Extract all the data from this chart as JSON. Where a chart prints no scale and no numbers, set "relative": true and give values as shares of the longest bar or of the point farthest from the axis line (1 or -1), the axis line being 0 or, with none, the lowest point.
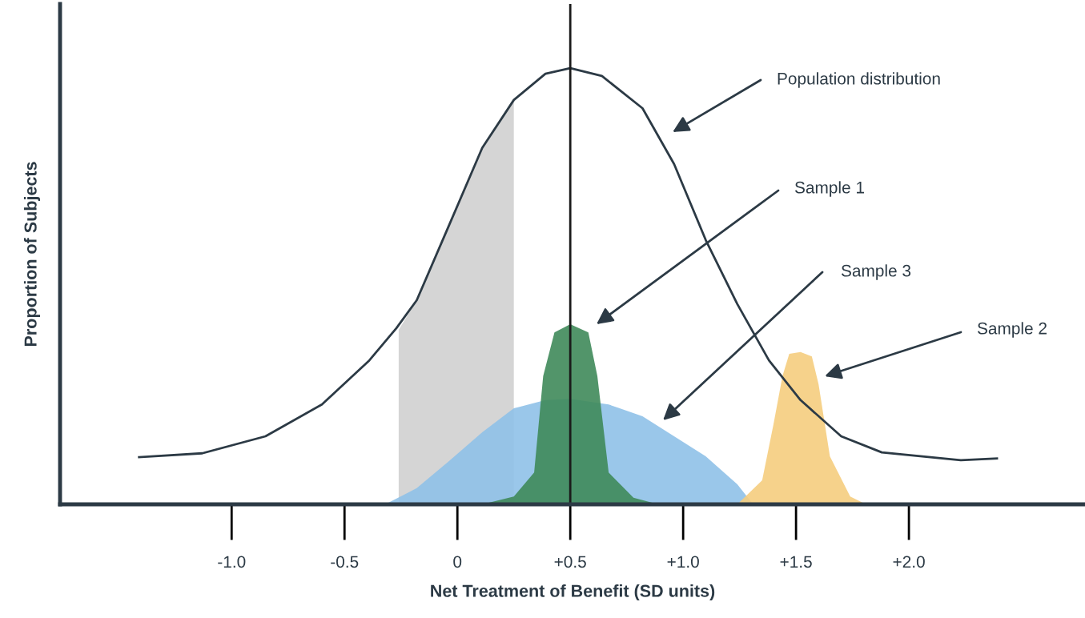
{
  "chart_data": {
    "type": "area",
    "relative": true,
    "xlabel": "Net Treatment of Benefit (SD units)",
    "ylabel": "Proportion of Subjects",
    "xlim": [
      -1.76,
      2.78
    ],
    "xticks": [
      {
        "value": -1.0,
        "label": "-1.0"
      },
      {
        "value": -0.5,
        "label": "-0.5"
      },
      {
        "value": 0,
        "label": "0"
      },
      {
        "value": 0.5,
        "label": "+0.5"
      },
      {
        "value": 1.0,
        "label": "+1.0"
      },
      {
        "value": 1.5,
        "label": "+1.5"
      },
      {
        "value": 2.0,
        "label": "+2.0"
      }
    ],
    "grid": false,
    "legend": false,
    "series": [
      {
        "color": "#d0d0d0",
        "x": [
          -0.26,
          -0.18,
          -0.035,
          0.11,
          0.25
        ],
        "values": [
          0.4,
          0.468,
          0.642,
          0.817,
          0.927
        ]
      },
      {
        "color": "#8fc1e8",
        "x": [
          -0.32,
          -0.18,
          -0.035,
          0.11,
          0.25,
          0.39,
          0.5,
          0.67,
          0.82,
          0.96,
          1.1,
          1.24,
          1.31
        ],
        "values": [
          0,
          0.037,
          0.1,
          0.165,
          0.22,
          0.239,
          0.242,
          0.229,
          0.202,
          0.156,
          0.11,
          0.046,
          0
        ]
      },
      {
        "color": "#3f8a5a",
        "x": [
          0.11,
          0.25,
          0.34,
          0.38,
          0.43,
          0.5,
          0.58,
          0.62,
          0.67,
          0.78,
          0.89
        ],
        "values": [
          0,
          0.018,
          0.073,
          0.294,
          0.394,
          0.413,
          0.394,
          0.294,
          0.073,
          0.015,
          0
        ]
      },
      {
        "color": "#f5cd7e",
        "x": [
          1.24,
          1.35,
          1.4,
          1.44,
          1.47,
          1.52,
          1.57,
          1.6,
          1.65,
          1.74,
          1.81
        ],
        "values": [
          0,
          0.055,
          0.183,
          0.294,
          0.345,
          0.349,
          0.339,
          0.275,
          0.11,
          0.018,
          0
        ]
      },
      {
        "type": "line",
        "color": "#2c3a45",
        "x": [
          -1.41,
          -1.13,
          -0.85,
          -0.6,
          -0.39,
          -0.27,
          -0.18,
          -0.035,
          0.11,
          0.25,
          0.39,
          0.5,
          0.64,
          0.82,
          0.96,
          1.1,
          1.24,
          1.38,
          1.52,
          1.7,
          1.88,
          2.23,
          2.39
        ],
        "values": [
          0.108,
          0.117,
          0.156,
          0.229,
          0.33,
          0.404,
          0.468,
          0.642,
          0.817,
          0.927,
          0.987,
          1.0,
          0.982,
          0.908,
          0.78,
          0.606,
          0.459,
          0.33,
          0.239,
          0.156,
          0.119,
          0.101,
          0.105
        ]
      }
    ],
    "ref_lines": [
      {
        "axis": "x",
        "value": 0.5,
        "color": "#1a1a1a"
      }
    ],
    "annotations": [
      "Population distribution",
      "Sample 1",
      "Sample 3",
      "Sample 2"
    ]
  }
}
